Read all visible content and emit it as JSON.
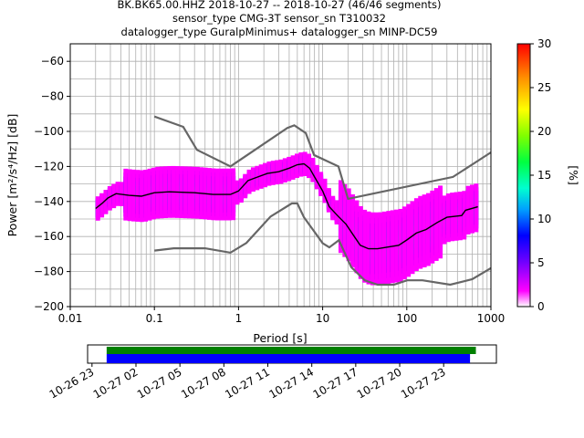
{
  "chart_data": {
    "type": "heatmap",
    "title_lines": [
      "BK.BK65.00.HHZ   2018-10-27 -- 2018-10-27  (46/46 segments)",
      "sensor_type CMG-3T sensor_sn T310032",
      "datalogger_type GuralpMinimus+ datalogger_sn MINP-DC59"
    ],
    "xlabel": "Period [s]",
    "ylabel": "Power [m²/s⁴/Hz] [dB]",
    "x_scale": "log",
    "xlim": [
      0.01,
      1000
    ],
    "ylim": [
      -200,
      -50
    ],
    "x_ticks": [
      {
        "value": 0.01,
        "label": "0.01"
      },
      {
        "value": 0.1,
        "label": "0.1"
      },
      {
        "value": 1,
        "label": "1"
      },
      {
        "value": 10,
        "label": "10"
      },
      {
        "value": 100,
        "label": "100"
      },
      {
        "value": 1000,
        "label": "1000"
      }
    ],
    "y_ticks": [
      -60,
      -80,
      -100,
      -120,
      -140,
      -160,
      -180,
      -200
    ],
    "grid": true,
    "colorbar": {
      "label": "[%]",
      "range": [
        0,
        30
      ],
      "ticks": [
        0,
        5,
        10,
        15,
        20,
        25,
        30
      ]
    },
    "noise_models": {
      "high": [
        [
          0.1,
          -91.5
        ],
        [
          0.22,
          -97.4
        ],
        [
          0.32,
          -110.5
        ],
        [
          0.8,
          -120
        ],
        [
          3.8,
          -98
        ],
        [
          4.6,
          -96.5
        ],
        [
          6.3,
          -101
        ],
        [
          7.9,
          -113.5
        ],
        [
          15.4,
          -120
        ],
        [
          20,
          -138.5
        ],
        [
          354,
          -126
        ],
        [
          1000,
          -112
        ]
      ],
      "low": [
        [
          0.1,
          -168
        ],
        [
          0.17,
          -166.7
        ],
        [
          0.4,
          -166.7
        ],
        [
          0.8,
          -169.2
        ],
        [
          1.24,
          -163.7
        ],
        [
          2.4,
          -148.6
        ],
        [
          4.3,
          -141.1
        ],
        [
          5,
          -141.1
        ],
        [
          6,
          -149
        ],
        [
          10,
          -163.8
        ],
        [
          12,
          -166.2
        ],
        [
          15.6,
          -162.1
        ],
        [
          21.9,
          -177.5
        ],
        [
          31.6,
          -185
        ],
        [
          45,
          -187.5
        ],
        [
          70,
          -187.5
        ],
        [
          101,
          -185
        ],
        [
          154,
          -185
        ],
        [
          328,
          -187.5
        ],
        [
          600,
          -184.4
        ],
        [
          1000,
          -178
        ]
      ]
    },
    "mean_psd": [
      [
        0.02,
        -144
      ],
      [
        0.024,
        -141
      ],
      [
        0.028,
        -138
      ],
      [
        0.035,
        -135.5
      ],
      [
        0.05,
        -136.5
      ],
      [
        0.07,
        -137
      ],
      [
        0.1,
        -135
      ],
      [
        0.15,
        -134.5
      ],
      [
        0.3,
        -135
      ],
      [
        0.5,
        -136
      ],
      [
        0.8,
        -136
      ],
      [
        1,
        -134
      ],
      [
        1.3,
        -128
      ],
      [
        1.7,
        -126
      ],
      [
        2.2,
        -124
      ],
      [
        3,
        -123
      ],
      [
        4,
        -121
      ],
      [
        5,
        -119
      ],
      [
        6,
        -118.5
      ],
      [
        7,
        -121
      ],
      [
        8,
        -126
      ],
      [
        10,
        -134
      ],
      [
        12,
        -143
      ],
      [
        15,
        -148
      ],
      [
        19,
        -153
      ],
      [
        23,
        -159
      ],
      [
        28,
        -165
      ],
      [
        35,
        -167
      ],
      [
        45,
        -167
      ],
      [
        60,
        -166
      ],
      [
        80,
        -165
      ],
      [
        100,
        -162
      ],
      [
        130,
        -158
      ],
      [
        170,
        -156
      ],
      [
        230,
        -152
      ],
      [
        300,
        -149
      ],
      [
        450,
        -148
      ],
      [
        500,
        -145
      ],
      [
        700,
        -143
      ]
    ],
    "timeline": {
      "tick_labels": [
        "10-26 23",
        "10-27 02",
        "10-27 05",
        "10-27 08",
        "10-27 11",
        "10-27 14",
        "10-27 17",
        "10-27 20",
        "10-27 23"
      ],
      "range_hours": [
        -1.3,
        26.6
      ],
      "data_bar": {
        "start_hour": 0.0,
        "end_hour": 25.2,
        "color": "#008000"
      },
      "psd_bar": {
        "start_hour": 0.0,
        "end_hour": 24.8,
        "color": "#0000ff"
      }
    },
    "colors": {
      "noise_model": "#666666",
      "mean_psd": "#000000"
    }
  }
}
